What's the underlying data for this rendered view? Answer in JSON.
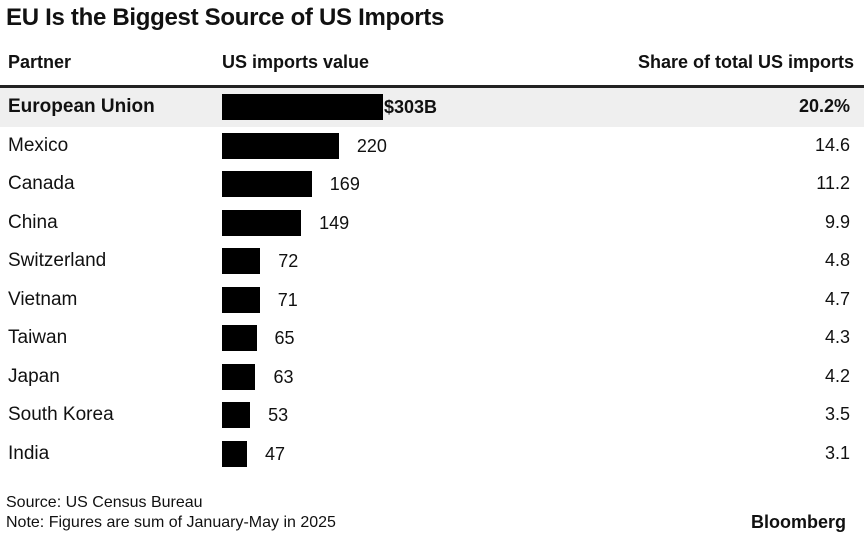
{
  "chart_data": {
    "type": "table",
    "title": "EU Is the Biggest Source of US Imports",
    "columns": [
      "Partner",
      "US imports value",
      "Share of total US imports"
    ],
    "unit": "$B",
    "rows": [
      {
        "partner": "European Union",
        "value": 303,
        "value_label": "$303B",
        "share": "20.2%"
      },
      {
        "partner": "Mexico",
        "value": 220,
        "value_label": "220",
        "share": "14.6"
      },
      {
        "partner": "Canada",
        "value": 169,
        "value_label": "169",
        "share": "11.2"
      },
      {
        "partner": "China",
        "value": 149,
        "value_label": "149",
        "share": "9.9"
      },
      {
        "partner": "Switzerland",
        "value": 72,
        "value_label": "72",
        "share": "4.8"
      },
      {
        "partner": "Vietnam",
        "value": 71,
        "value_label": "71",
        "share": "4.7"
      },
      {
        "partner": "Taiwan",
        "value": 65,
        "value_label": "65",
        "share": "4.3"
      },
      {
        "partner": "Japan",
        "value": 63,
        "value_label": "63",
        "share": "4.2"
      },
      {
        "partner": "South Korea",
        "value": 53,
        "value_label": "53",
        "share": "3.5"
      },
      {
        "partner": "India",
        "value": 47,
        "value_label": "47",
        "share": "3.1"
      }
    ],
    "source": "Source: US Census Bureau",
    "note": "Note: Figures are sum of January-May in 2025",
    "brand": "Bloomberg"
  }
}
